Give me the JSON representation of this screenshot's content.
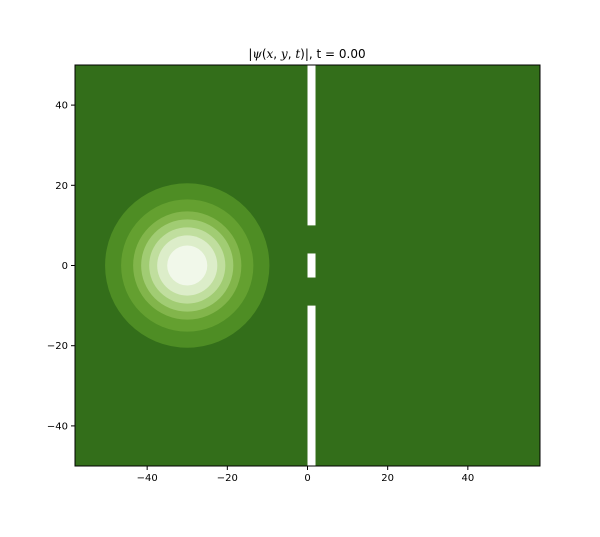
{
  "chart_data": {
    "type": "heatmap",
    "title": "|ψ(x, y, t)|, t = 0.00",
    "title_parts": {
      "abs_open": "|",
      "psi": "ψ",
      "args_open": "(",
      "x": "x",
      "sep1": ", ",
      "y": "y",
      "sep2": ", ",
      "t": "t",
      "args_close": ")",
      "abs_close": "|",
      "time_label": ", t = 0.00"
    },
    "xlabel": "",
    "ylabel": "",
    "xlim": [
      -58,
      58
    ],
    "ylim": [
      -50,
      50
    ],
    "xticks": [
      -40,
      -20,
      0,
      20,
      40
    ],
    "yticks": [
      -40,
      -20,
      0,
      20,
      40
    ],
    "xtick_labels": [
      "−40",
      "−20",
      "0",
      "20",
      "40"
    ],
    "ytick_labels": [
      "−40",
      "−20",
      "0",
      "20",
      "40"
    ],
    "grid": false,
    "colormap": "Greens_r",
    "background_color": "#336e1a",
    "wave_packet": {
      "center": [
        -30,
        0
      ],
      "contour_levels": [
        {
          "radius": 20.5,
          "color": "#4e8d24"
        },
        {
          "radius": 16.5,
          "color": "#64a030"
        },
        {
          "radius": 13.5,
          "color": "#82b54b"
        },
        {
          "radius": 11.5,
          "color": "#a1cc73"
        },
        {
          "radius": 9.5,
          "color": "#c0de9e"
        },
        {
          "radius": 7.5,
          "color": "#dcedc9"
        },
        {
          "radius": 5.0,
          "color": "#f1f8ea"
        }
      ]
    },
    "barrier": {
      "x_range": [
        0,
        2
      ],
      "color": "#ffffff",
      "segments": [
        {
          "y_range": [
            10,
            50
          ]
        },
        {
          "y_range": [
            -3,
            3
          ]
        },
        {
          "y_range": [
            -50,
            -10
          ]
        }
      ],
      "slits": [
        {
          "y_range": [
            3,
            10
          ]
        },
        {
          "y_range": [
            -10,
            -3
          ]
        }
      ]
    }
  }
}
